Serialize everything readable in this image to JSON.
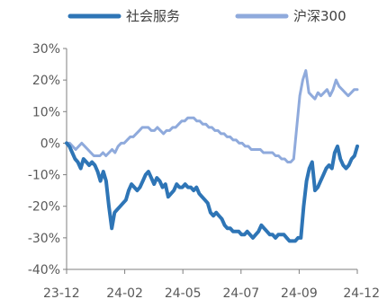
{
  "chart_data": {
    "type": "line",
    "title": "",
    "xlabel": "",
    "ylabel": "",
    "ylim": [
      -40,
      30
    ],
    "y_ticks": [
      "30%",
      "20%",
      "10%",
      "0%",
      "-10%",
      "-20%",
      "-30%",
      "-40%"
    ],
    "x_ticks": [
      "23-12",
      "24-02",
      "24-05",
      "24-07",
      "24-09",
      "24-12"
    ],
    "grid": false,
    "legend_position": "top",
    "series": [
      {
        "name": "社会服务",
        "color": "#2e75b6",
        "values": [
          0,
          -1,
          -3,
          -5,
          -6,
          -8,
          -5,
          -6,
          -7,
          -6,
          -7,
          -9,
          -12,
          -9,
          -12,
          -20,
          -27,
          -22,
          -21,
          -20,
          -19,
          -18,
          -15,
          -13,
          -14,
          -15,
          -14,
          -12,
          -10,
          -9,
          -11,
          -13,
          -11,
          -12,
          -14,
          -13,
          -17,
          -16,
          -15,
          -13,
          -14,
          -14,
          -13,
          -14,
          -14,
          -15,
          -14,
          -16,
          -17,
          -18,
          -19,
          -22,
          -23,
          -22,
          -23,
          -24,
          -26,
          -27,
          -27,
          -28,
          -28,
          -28,
          -29,
          -29,
          -28,
          -29,
          -30,
          -29,
          -28,
          -26,
          -27,
          -28,
          -29,
          -29,
          -30,
          -29,
          -29,
          -29,
          -30,
          -31,
          -31,
          -31,
          -30,
          -30,
          -20,
          -12,
          -8,
          -6,
          -15,
          -14,
          -12,
          -10,
          -8,
          -7,
          -8,
          -3,
          -1,
          -5,
          -7,
          -8,
          -7,
          -5,
          -4,
          -1
        ]
      },
      {
        "name": "沪深300",
        "color": "#8faadc",
        "values": [
          0,
          0,
          -1,
          -2,
          -1,
          0,
          -1,
          -2,
          -3,
          -4,
          -4,
          -4,
          -3,
          -4,
          -3,
          -2,
          -3,
          -1,
          0,
          0,
          1,
          2,
          2,
          3,
          4,
          5,
          5,
          5,
          4,
          4,
          5,
          4,
          3,
          4,
          4,
          5,
          5,
          6,
          7,
          7,
          8,
          8,
          8,
          7,
          7,
          6,
          6,
          5,
          5,
          4,
          4,
          3,
          3,
          2,
          2,
          1,
          1,
          0,
          0,
          -1,
          -1,
          -2,
          -2,
          -2,
          -2,
          -3,
          -3,
          -3,
          -3,
          -4,
          -4,
          -5,
          -5,
          -6,
          -6,
          -5,
          5,
          15,
          20,
          23,
          16,
          15,
          14,
          16,
          15,
          16,
          17,
          15,
          17,
          20,
          18,
          17,
          16,
          15,
          16,
          17,
          17
        ]
      }
    ]
  }
}
